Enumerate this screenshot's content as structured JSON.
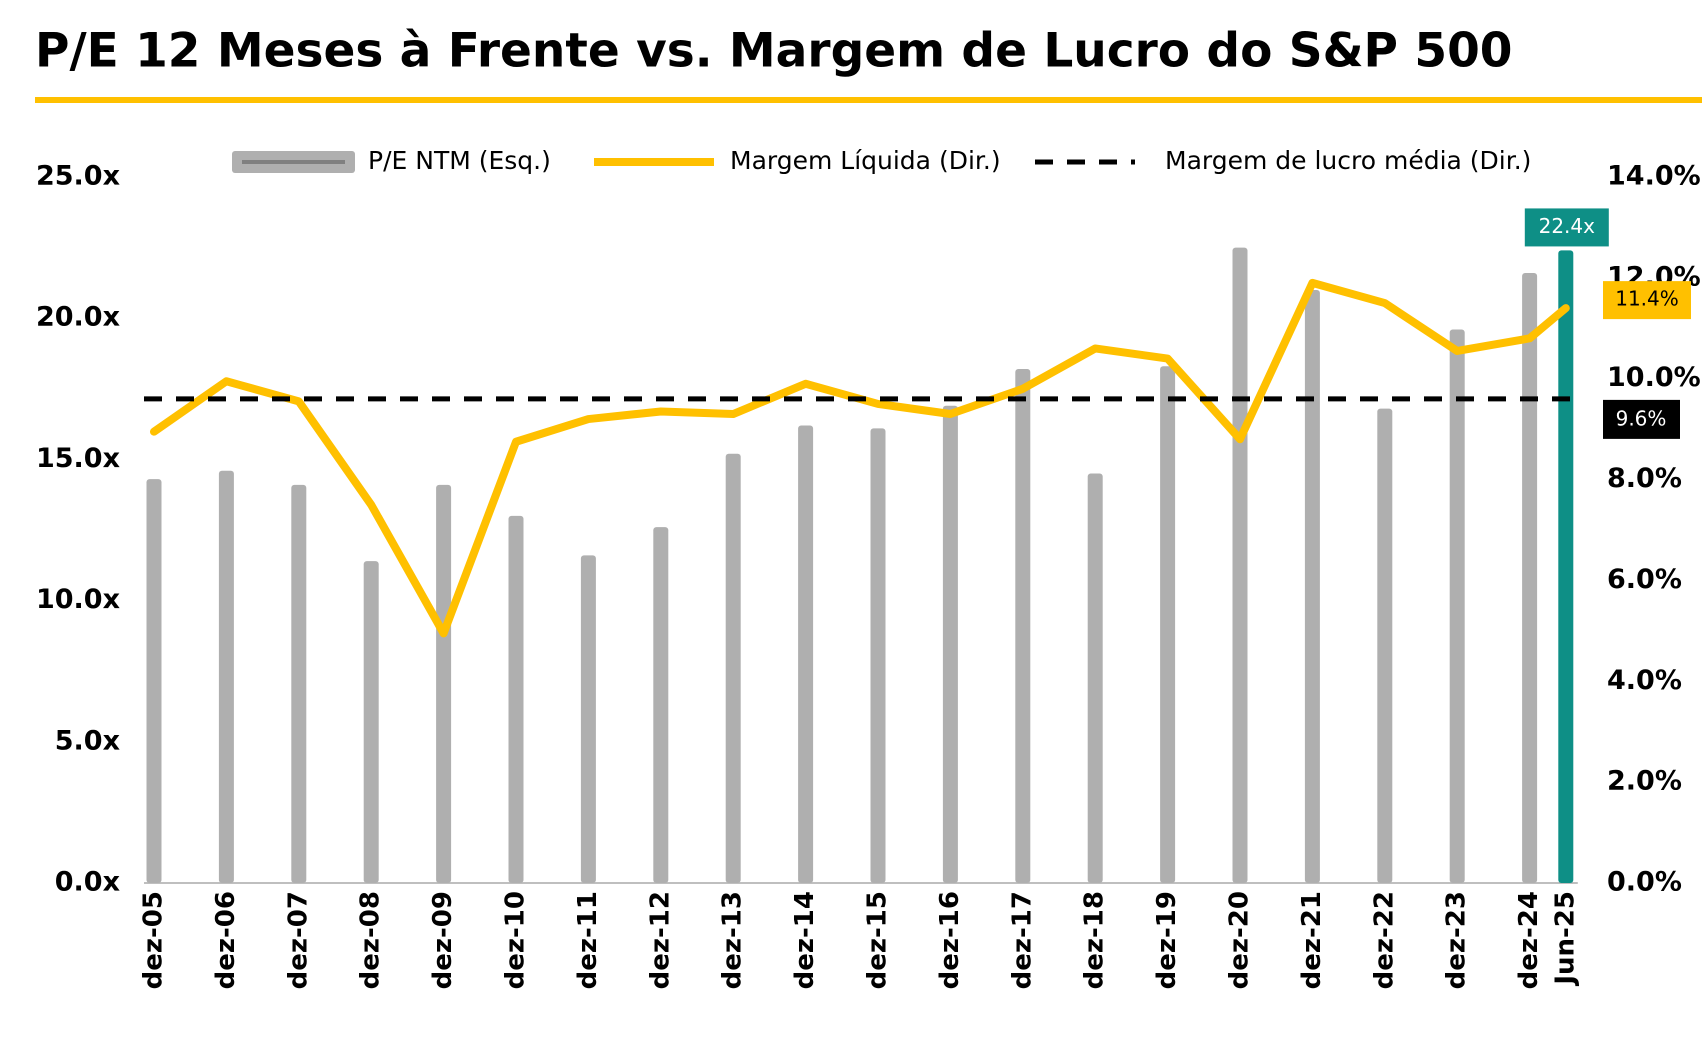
{
  "chart_data": {
    "type": "bar_line",
    "title": "P/E 12 Meses à Frente vs. Margem de Lucro do S&P 500",
    "categories": [
      "dez-05",
      "dez-06",
      "dez-07",
      "dez-08",
      "dez-09",
      "dez-10",
      "dez-11",
      "dez-12",
      "dez-13",
      "dez-14",
      "dez-15",
      "dez-16",
      "dez-17",
      "dez-18",
      "dez-19",
      "dez-20",
      "dez-21",
      "dez-22",
      "dez-23",
      "dez-24",
      "Jun-25"
    ],
    "series": [
      {
        "name": "P/E NTM (Esq.)",
        "type": "bar",
        "color": "#afafaf",
        "highlight_color": "#0e8f86",
        "values": [
          14.3,
          14.6,
          14.1,
          11.4,
          14.1,
          13.0,
          11.6,
          12.6,
          15.2,
          16.2,
          16.1,
          16.9,
          18.2,
          14.5,
          18.3,
          22.5,
          21.0,
          16.8,
          19.6,
          21.6,
          22.4
        ],
        "value_labels": [
          null,
          null,
          null,
          null,
          null,
          null,
          null,
          null,
          null,
          null,
          null,
          null,
          null,
          null,
          null,
          null,
          null,
          null,
          null,
          null,
          "22.4x"
        ]
      },
      {
        "name": "Margem Líquida (Dir.)",
        "type": "line",
        "axis": "y2",
        "color": "#ffc000",
        "values": [
          8.95,
          9.95,
          9.55,
          7.5,
          4.95,
          8.75,
          9.2,
          9.35,
          9.3,
          9.9,
          9.5,
          9.3,
          9.8,
          10.6,
          10.4,
          8.8,
          11.9,
          11.5,
          10.55,
          10.8,
          11.4
        ],
        "value_labels": [
          null,
          null,
          null,
          null,
          null,
          null,
          null,
          null,
          null,
          null,
          null,
          null,
          null,
          null,
          null,
          null,
          null,
          null,
          null,
          null,
          "11.4%"
        ]
      },
      {
        "name": "Margem de lucro média (Dir.)",
        "type": "hline",
        "axis": "y2",
        "color": "#000000",
        "value": 9.6,
        "value_label": "9.6%"
      }
    ],
    "ylim": [
      0,
      25
    ],
    "yticks": [
      {
        "value": 0,
        "label": "0.0x"
      },
      {
        "value": 5,
        "label": "5.0x"
      },
      {
        "value": 10,
        "label": "10.0x"
      },
      {
        "value": 15,
        "label": "15.0x"
      },
      {
        "value": 20,
        "label": "20.0x"
      },
      {
        "value": 25,
        "label": "25.0x"
      }
    ],
    "y2lim": [
      0,
      14
    ],
    "y2ticks": [
      {
        "value": 0,
        "label": "0.0%"
      },
      {
        "value": 2,
        "label": "2.0%"
      },
      {
        "value": 4,
        "label": "4.0%"
      },
      {
        "value": 6,
        "label": "6.0%"
      },
      {
        "value": 8,
        "label": "8.0%"
      },
      {
        "value": 10,
        "label": "10.0%"
      },
      {
        "value": 12,
        "label": "12.0%"
      },
      {
        "value": 14,
        "label": "14.0%"
      }
    ],
    "grid": false
  }
}
